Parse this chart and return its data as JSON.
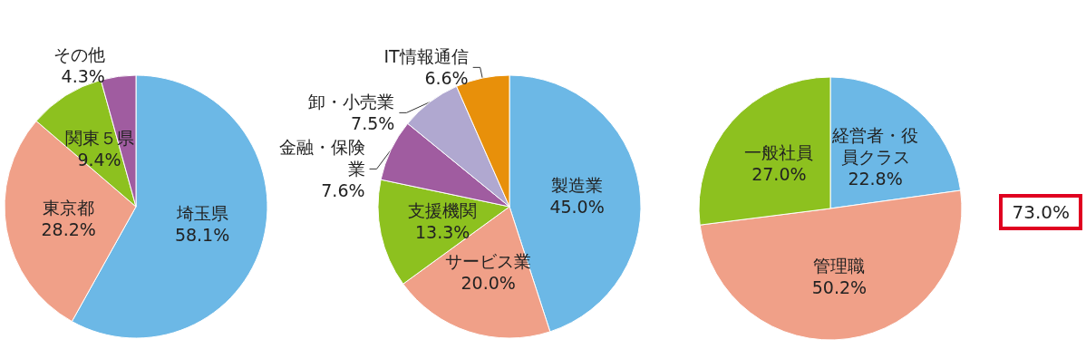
{
  "chart_data": [
    {
      "type": "pie",
      "categories": [
        "埼玉県",
        "東京都",
        "関東５県",
        "その他"
      ],
      "values": [
        58.1,
        28.2,
        9.4,
        4.3
      ],
      "value_labels": [
        "58.1%",
        "28.2%",
        "9.4%",
        "4.3%"
      ],
      "colors": [
        "#6cb8e6",
        "#f0a088",
        "#8dc11f",
        "#a05ca0"
      ]
    },
    {
      "type": "pie",
      "categories": [
        "製造業",
        "サービス業",
        "支援機関",
        "金融・保険業",
        "卸・小売業",
        "IT情報通信"
      ],
      "values": [
        45.0,
        20.0,
        13.3,
        7.6,
        7.5,
        6.6
      ],
      "value_labels": [
        "45.0%",
        "20.0%",
        "13.3%",
        "7.6%",
        "7.5%",
        "6.6%"
      ],
      "colors": [
        "#6cb8e6",
        "#f0a088",
        "#8dc11f",
        "#a05ca0",
        "#b0a8d0",
        "#e8900a"
      ]
    },
    {
      "type": "pie",
      "categories": [
        "経営者・役員クラス",
        "管理職",
        "一般社員"
      ],
      "values": [
        22.8,
        50.2,
        27.0
      ],
      "value_labels": [
        "22.8%",
        "50.2%",
        "27.0%"
      ],
      "colors": [
        "#6cb8e6",
        "#f0a088",
        "#8dc11f"
      ],
      "annotations": [
        "73.0%"
      ]
    }
  ]
}
